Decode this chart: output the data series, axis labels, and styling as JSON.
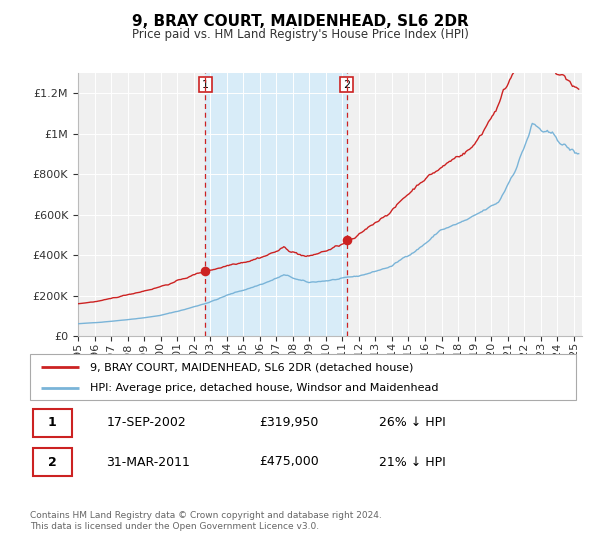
{
  "title": "9, BRAY COURT, MAIDENHEAD, SL6 2DR",
  "subtitle": "Price paid vs. HM Land Registry's House Price Index (HPI)",
  "ylabel_ticks": [
    "£0",
    "£200K",
    "£400K",
    "£600K",
    "£800K",
    "£1M",
    "£1.2M"
  ],
  "ytick_values": [
    0,
    200000,
    400000,
    600000,
    800000,
    1000000,
    1200000
  ],
  "ylim": [
    0,
    1300000
  ],
  "xlim_start": 1995.0,
  "xlim_end": 2025.5,
  "hpi_color": "#7ab4d8",
  "price_color": "#cc2222",
  "shading_color": "#d8ecf8",
  "vline_color": "#cc2222",
  "marker1_date": 2002.71,
  "marker1_price": 319950,
  "marker2_date": 2011.25,
  "marker2_price": 475000,
  "vline1_x": 2002.71,
  "vline2_x": 2011.25,
  "legend_line1": "9, BRAY COURT, MAIDENHEAD, SL6 2DR (detached house)",
  "legend_line2": "HPI: Average price, detached house, Windsor and Maidenhead",
  "table_row1": [
    "1",
    "17-SEP-2002",
    "£319,950",
    "26% ↓ HPI"
  ],
  "table_row2": [
    "2",
    "31-MAR-2011",
    "£475,000",
    "21% ↓ HPI"
  ],
  "footer1": "Contains HM Land Registry data © Crown copyright and database right 2024.",
  "footer2": "This data is licensed under the Open Government Licence v3.0.",
  "background_color": "#ffffff",
  "plot_bg_color": "#f0f0f0"
}
